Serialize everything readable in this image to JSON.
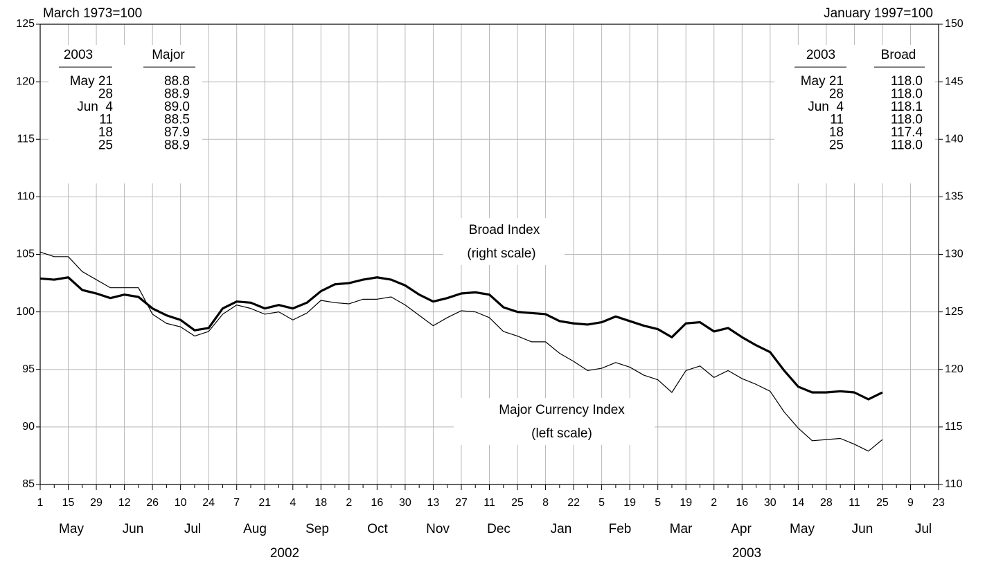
{
  "chart_data": {
    "type": "line",
    "ylabel": "March 1973=100",
    "y2label": "January 1997=100",
    "categories": [
      "1",
      null,
      "15",
      null,
      "29",
      null,
      "12",
      null,
      "26",
      null,
      "10",
      null,
      "24",
      null,
      "7",
      null,
      "21",
      null,
      "4",
      null,
      "18",
      null,
      "2",
      null,
      "16",
      null,
      "30",
      null,
      "13",
      null,
      "27",
      null,
      "11",
      null,
      "25",
      null,
      "8",
      null,
      "22",
      null,
      "5",
      null,
      "19",
      null,
      "5",
      null,
      "19",
      null,
      "2",
      null,
      "16",
      null,
      "30",
      null,
      "14",
      null,
      "28",
      null,
      "11",
      null,
      "25",
      null,
      "9",
      null,
      "23"
    ],
    "months": [
      "May",
      "Jun",
      "Jul",
      "Aug",
      "Sep",
      "Oct",
      "Nov",
      "Dec",
      "Jan",
      "Feb",
      "Mar",
      "Apr",
      "May",
      "Jun",
      "Jul"
    ],
    "years": [
      "2002",
      "2003"
    ],
    "series": [
      {
        "name": "Major Currency Index",
        "color": "#000000",
        "linewidth": 1.2,
        "axis": "y",
        "values": [
          105.2,
          104.8,
          104.8,
          103.5,
          102.8,
          102.1,
          102.1,
          102.1,
          99.8,
          99.0,
          98.7,
          97.9,
          98.3,
          99.8,
          100.6,
          100.3,
          99.8,
          100.0,
          99.3,
          99.9,
          101.0,
          100.8,
          100.7,
          101.1,
          101.1,
          101.3,
          100.6,
          99.7,
          98.8,
          99.5,
          100.1,
          100.0,
          99.5,
          98.3,
          97.9,
          97.4,
          97.4,
          96.4,
          95.7,
          94.9,
          95.1,
          95.6,
          95.2,
          94.5,
          94.1,
          93.0,
          94.9,
          95.3,
          94.3,
          94.9,
          94.2,
          93.7,
          93.1,
          91.3,
          89.9,
          88.8,
          88.9,
          89.0,
          88.5,
          87.9,
          88.9,
          null,
          null,
          null,
          null
        ]
      },
      {
        "name": "Broad Index",
        "color": "#000000",
        "linewidth": 3.2,
        "axis": "y2",
        "values": [
          127.9,
          127.8,
          128.0,
          126.9,
          126.6,
          126.2,
          126.5,
          126.3,
          125.3,
          124.7,
          124.3,
          123.4,
          123.6,
          125.3,
          125.9,
          125.8,
          125.3,
          125.6,
          125.3,
          125.8,
          126.8,
          127.4,
          127.5,
          127.8,
          128.0,
          127.8,
          127.3,
          126.5,
          125.9,
          126.2,
          126.6,
          126.7,
          126.5,
          125.4,
          125.0,
          124.9,
          124.8,
          124.2,
          124.0,
          123.9,
          124.1,
          124.6,
          124.2,
          123.8,
          123.5,
          122.8,
          124.0,
          124.1,
          123.3,
          123.6,
          122.8,
          122.1,
          121.5,
          119.9,
          118.5,
          118.0,
          118.0,
          118.1,
          118.0,
          117.4,
          118.0,
          null,
          null,
          null,
          null
        ]
      }
    ],
    "annotations": [
      "(right scale)",
      "(left scale)"
    ],
    "tables": [
      {
        "headers": [
          "2003",
          "Major"
        ],
        "rows": [
          [
            "May 21",
            "88.8"
          ],
          [
            "28",
            "88.9"
          ],
          [
            "Jun  4",
            "89.0"
          ],
          [
            "11",
            "88.5"
          ],
          [
            "18",
            "87.9"
          ],
          [
            "25",
            "88.9"
          ]
        ]
      },
      {
        "headers": [
          "2003",
          "Broad"
        ],
        "rows": [
          [
            "May 21",
            "118.0"
          ],
          [
            "28",
            "118.0"
          ],
          [
            "Jun  4",
            "118.1"
          ],
          [
            "11",
            "118.0"
          ],
          [
            "18",
            "117.4"
          ],
          [
            "25",
            "118.0"
          ]
        ]
      }
    ],
    "ylim": [
      85,
      125
    ],
    "yticks": [
      85,
      90,
      95,
      100,
      105,
      110,
      115,
      120,
      125
    ],
    "y2lim": [
      110,
      150
    ],
    "y2ticks": [
      110,
      115,
      120,
      125,
      130,
      135,
      140,
      145,
      150
    ],
    "grid": true
  }
}
